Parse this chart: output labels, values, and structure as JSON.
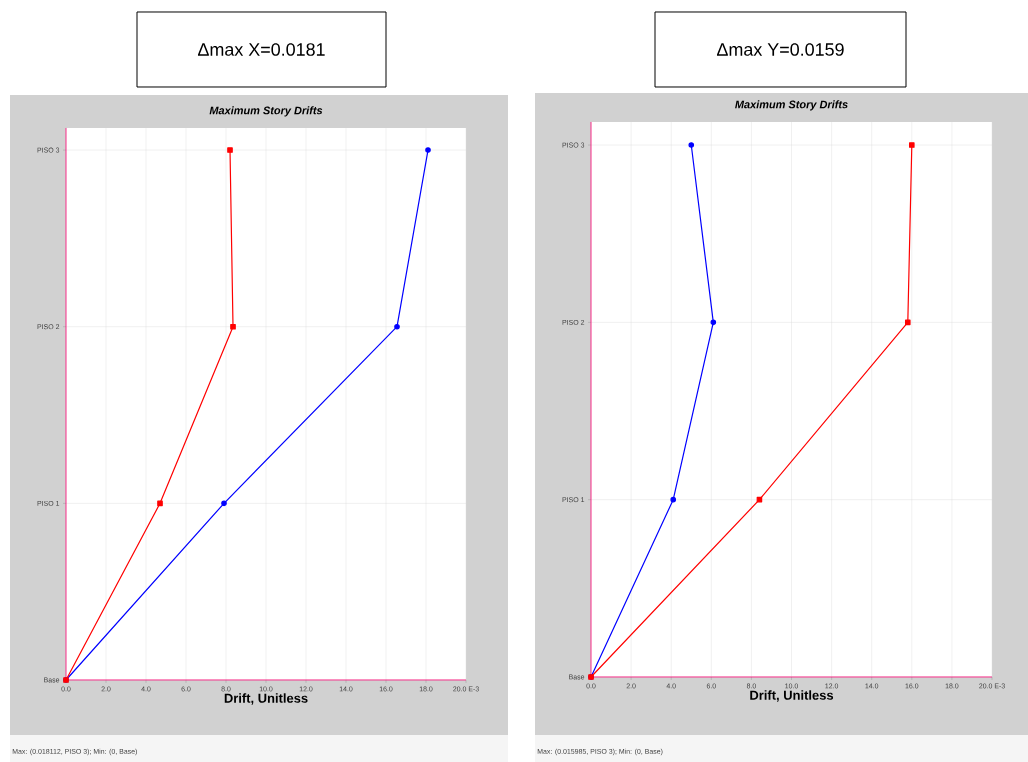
{
  "chart_data": [
    {
      "type": "line",
      "orientation": "horizontal",
      "title": "Maximum Story Drifts",
      "xlabel": "Drift, Unitless",
      "categories": [
        "PISO 3",
        "PISO 2",
        "PISO 1",
        "Base"
      ],
      "series": [
        {
          "color": "#0000ff",
          "marker": "circle",
          "values": [
            18.1,
            16.55,
            7.9,
            0
          ]
        },
        {
          "color": "#ff0000",
          "marker": "square",
          "values": [
            8.2,
            8.35,
            4.7,
            0
          ]
        }
      ],
      "xlim": [
        0,
        20
      ],
      "xticks": [
        {
          "value": 0,
          "label": "0.0"
        },
        {
          "value": 2,
          "label": "2.0"
        },
        {
          "value": 4,
          "label": "4.0"
        },
        {
          "value": 6,
          "label": "6.0"
        },
        {
          "value": 8,
          "label": "8.0"
        },
        {
          "value": 10,
          "label": "10.0"
        },
        {
          "value": 12,
          "label": "12.0"
        },
        {
          "value": 14,
          "label": "14.0"
        },
        {
          "value": 16,
          "label": "16.0"
        },
        {
          "value": 18,
          "label": "18.0"
        },
        {
          "value": 20,
          "label": "20.0 E-3"
        }
      ],
      "grid": true,
      "annotations": [
        "Δmax X=0.0181",
        "Max: (0.018112, PISO 3);   Min: (0, Base)"
      ]
    },
    {
      "type": "line",
      "orientation": "horizontal",
      "title": "Maximum Story Drifts",
      "xlabel": "Drift, Unitless",
      "categories": [
        "PISO 3",
        "PISO 2",
        "PISO 1",
        "Base"
      ],
      "series": [
        {
          "color": "#0000ff",
          "marker": "circle",
          "values": [
            5.0,
            6.1,
            4.1,
            0
          ]
        },
        {
          "color": "#ff0000",
          "marker": "square",
          "values": [
            16.0,
            15.8,
            8.4,
            0
          ]
        }
      ],
      "xlim": [
        0,
        20
      ],
      "xticks": [
        {
          "value": 0,
          "label": "0.0"
        },
        {
          "value": 2,
          "label": "2.0"
        },
        {
          "value": 4,
          "label": "4.0"
        },
        {
          "value": 6,
          "label": "6.0"
        },
        {
          "value": 8,
          "label": "8.0"
        },
        {
          "value": 10,
          "label": "10.0"
        },
        {
          "value": 12,
          "label": "12.0"
        },
        {
          "value": 14,
          "label": "14.0"
        },
        {
          "value": 16,
          "label": "16.0"
        },
        {
          "value": 18,
          "label": "18.0"
        },
        {
          "value": 20,
          "label": "20.0 E-3"
        }
      ],
      "grid": true,
      "annotations": [
        "Δmax Y=0.0159",
        "Max: (0.015985, PISO 3);   Min: (0, Base)"
      ]
    }
  ]
}
